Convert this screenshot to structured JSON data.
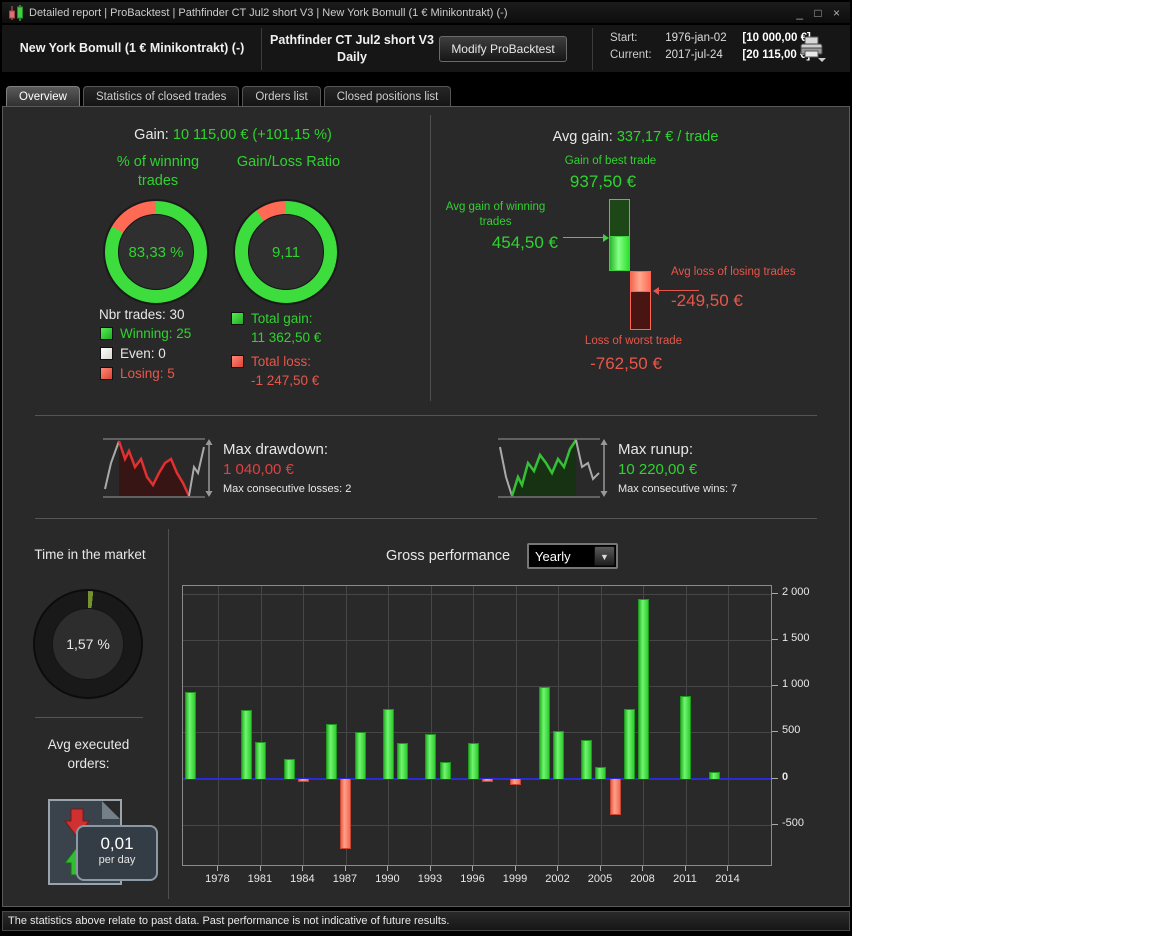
{
  "window": {
    "title": "Detailed report | ProBacktest | Pathfinder CT Jul2 short V3 | New York Bomull (1 € Minikontrakt) (-)",
    "minimize": "_",
    "maximize": "□",
    "close": "×"
  },
  "header": {
    "instrument": "New York Bomull (1 € Minikontrakt) (-)",
    "system_name": "Pathfinder CT Jul2 short V3",
    "timeframe": "Daily",
    "modify_button": "Modify ProBacktest",
    "start_label": "Start:",
    "start_date": "1976-jan-02",
    "start_value": "[10 000,00 €]",
    "current_label": "Current:",
    "current_date": "2017-jul-24",
    "current_value": "[20 115,00 €]"
  },
  "tabs": [
    {
      "label": "Overview",
      "active": true
    },
    {
      "label": "Statistics of closed trades",
      "active": false
    },
    {
      "label": "Orders list",
      "active": false
    },
    {
      "label": "Closed positions list",
      "active": false
    }
  ],
  "overview": {
    "gain_label": "Gain:",
    "gain_value": "10 115,00 € (+101,15 %)",
    "winning_donut": {
      "title": "% of winning trades",
      "value": "83,33 %",
      "green_pct": 83.33,
      "red_pct": 16.67
    },
    "ratio_donut": {
      "title": "Gain/Loss Ratio",
      "value": "9,11",
      "green_pct": 90.1,
      "red_pct": 9.9
    },
    "trades_legend": {
      "total": "Nbr trades: 30",
      "winning": "Winning: 25",
      "even": "Even: 0",
      "losing": "Losing: 5"
    },
    "totals_legend": {
      "gain_label": "Total gain:",
      "gain_value": "11 362,50 €",
      "loss_label": "Total loss:",
      "loss_value": "-1 247,50 €"
    },
    "avg_gain_label": "Avg gain:",
    "avg_gain_value": "337,17 € / trade",
    "best_trade_label": "Gain of best trade",
    "best_trade_value": "937,50 €",
    "avg_win_label": "Avg gain of winning trades",
    "avg_win_value": "454,50 €",
    "avg_loss_label": "Avg loss of losing trades",
    "avg_loss_value": "-249,50 €",
    "worst_trade_label": "Loss of worst trade",
    "worst_trade_value": "-762,50 €",
    "drawdown": {
      "label": "Max drawdown:",
      "value": "1 040,00 €",
      "sub": "Max consecutive losses: 2"
    },
    "runup": {
      "label": "Max runup:",
      "value": "10 220,00 €",
      "sub": "Max consecutive wins: 7"
    },
    "time_in_market": {
      "title": "Time in the market",
      "value": "1,57 %",
      "pct": 1.57
    },
    "avg_orders": {
      "title": "Avg executed orders:",
      "value": "0,01",
      "unit": "per day"
    },
    "gross_perf_label": "Gross performance",
    "gross_perf_period": "Yearly"
  },
  "chart_data": {
    "type": "bar",
    "title": "Gross performance (Yearly)",
    "x": [
      1976,
      1980,
      1981,
      1983,
      1984,
      1986,
      1987,
      1988,
      1990,
      1991,
      1993,
      1994,
      1996,
      1997,
      1999,
      2001,
      2002,
      2004,
      2005,
      2006,
      2007,
      2008,
      2011,
      2013
    ],
    "values": [
      940,
      740,
      400,
      215,
      -35,
      590,
      -762,
      500,
      755,
      385,
      480,
      185,
      390,
      -35,
      -70,
      990,
      515,
      420,
      130,
      -390,
      755,
      1945,
      890,
      70
    ],
    "x_ticks": [
      1978,
      1981,
      1984,
      1987,
      1990,
      1993,
      1996,
      1999,
      2002,
      2005,
      2008,
      2011,
      2014
    ],
    "x_tick_labels": [
      "1978",
      "1981",
      "1984",
      "1987",
      "1990",
      "1993",
      "1996",
      "1999",
      "2002",
      "2005",
      "2008",
      "2011",
      "2014"
    ],
    "y_ticks": [
      2000,
      1500,
      1000,
      500,
      0,
      -500
    ],
    "y_tick_labels": [
      "2 000",
      "1 500",
      "1 000",
      "500",
      "0",
      "-500"
    ],
    "x_range": [
      1975.5,
      2017
    ],
    "ylim": [
      -935,
      2085
    ],
    "grid": true,
    "legend": "none",
    "xlabel": "",
    "ylabel": ""
  },
  "colors": {
    "green_text": "#2fd32f",
    "red_text": "#e8564a",
    "donut_green": "#3ddd3d",
    "donut_red": "#ff6a55",
    "donut_track": "#191919",
    "time_sliver_green": "#74922e",
    "bar_positive": "#44e044",
    "bar_negative": "#ff7a66",
    "zero_line_blue": "#2a2ad8"
  },
  "status_bar": "The statistics above relate to past data. Past performance is not indicative of future results."
}
